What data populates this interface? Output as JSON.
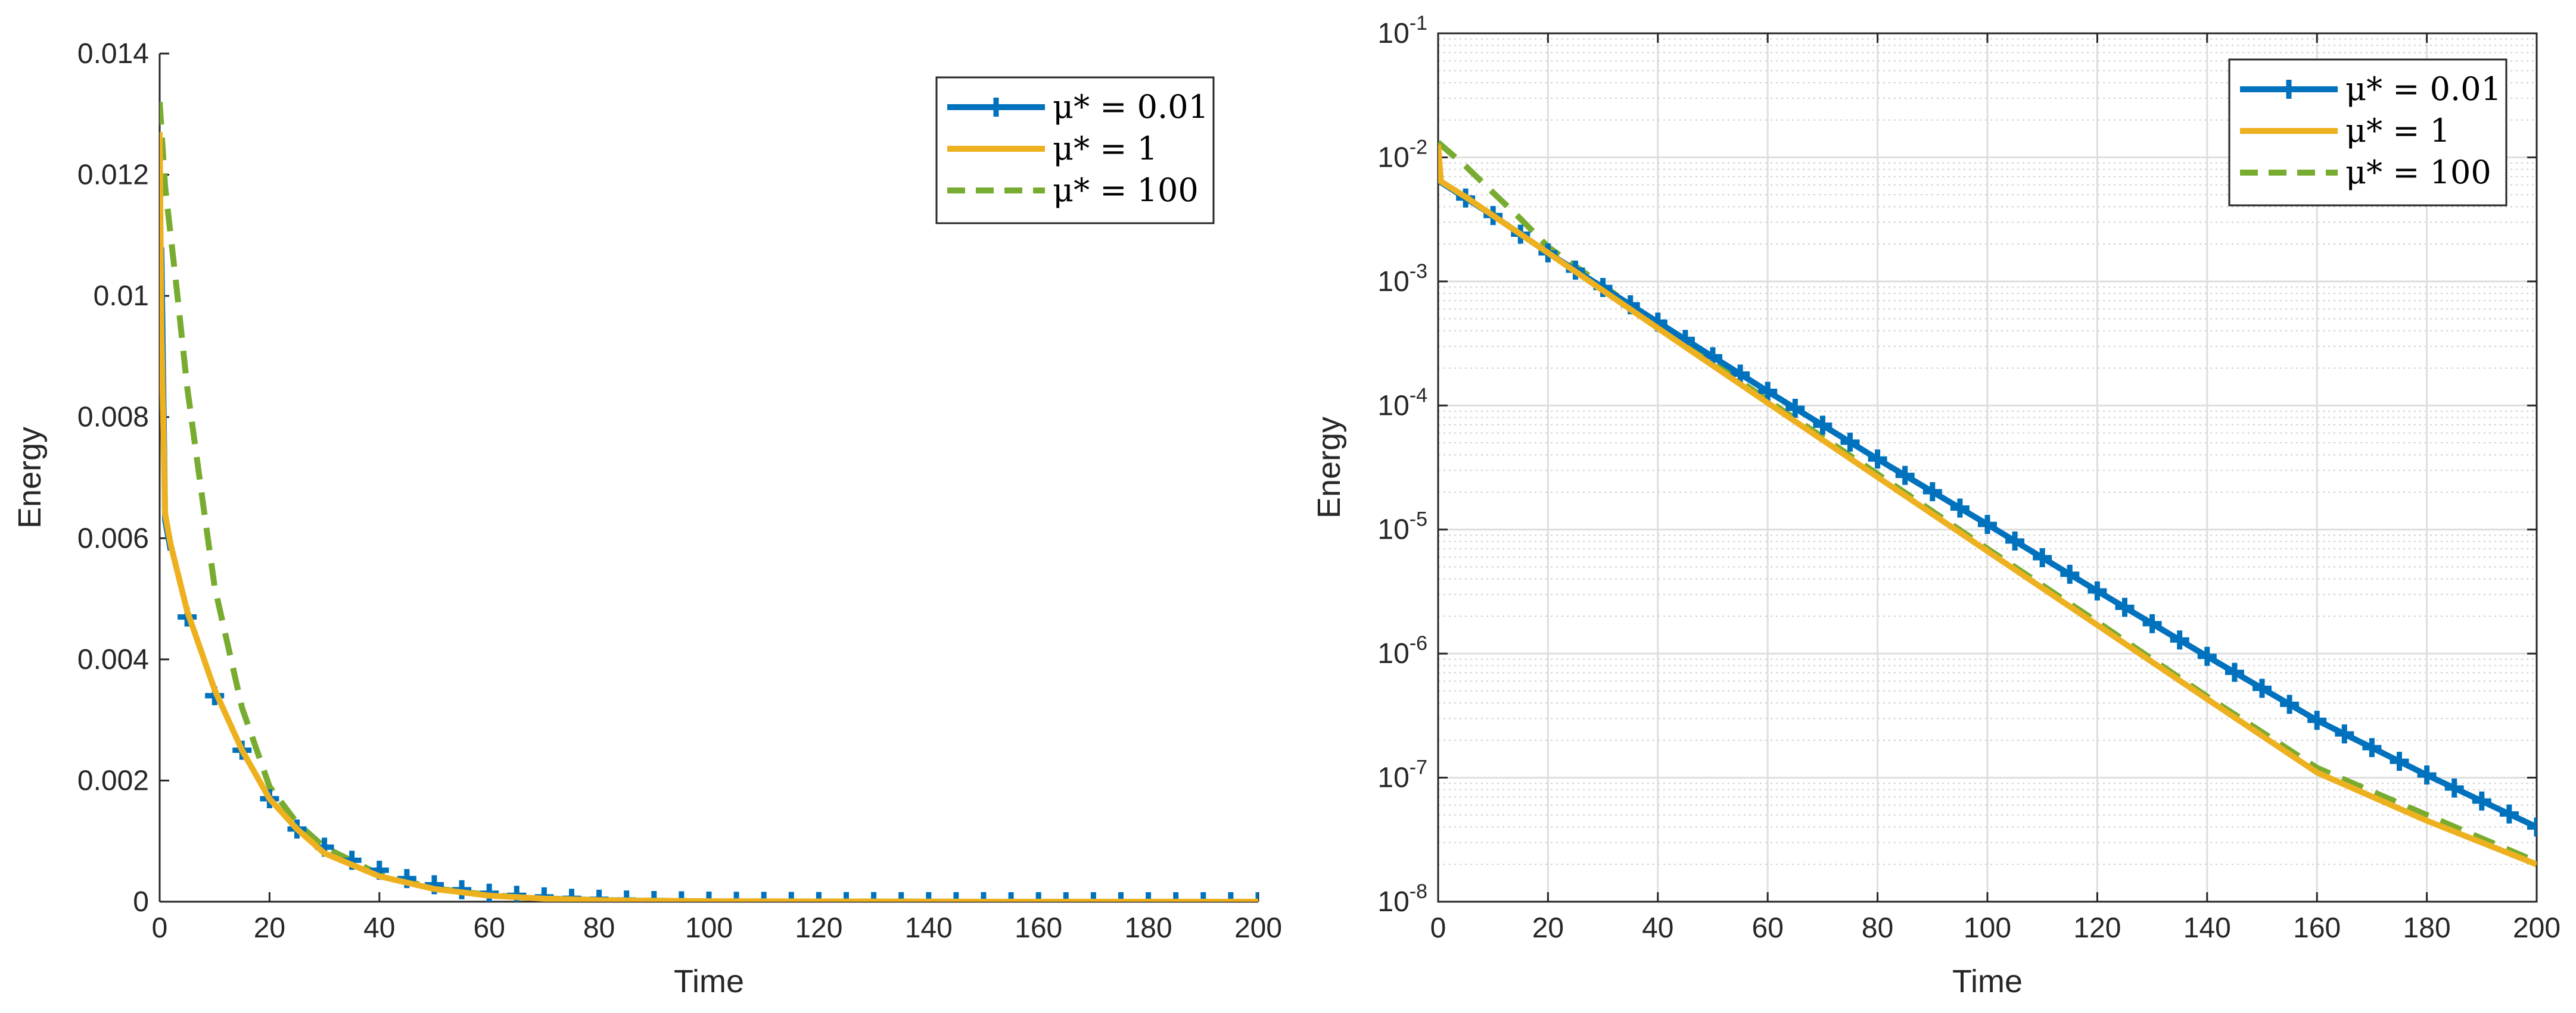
{
  "colors": {
    "mu_001": "#0072BD",
    "mu_1": "#EDB120",
    "mu_100": "#77AC30",
    "axis": "#262626",
    "grid": "#dedede"
  },
  "chart_data": [
    {
      "type": "line",
      "title": "",
      "xlabel": "Time",
      "ylabel": "Energy",
      "xlim": [
        0,
        200
      ],
      "ylim": [
        0,
        0.014
      ],
      "yscale": "linear",
      "grid": false,
      "legend_position": "top-right",
      "xticks": [
        "0",
        "20",
        "40",
        "60",
        "80",
        "100",
        "120",
        "140",
        "160",
        "180",
        "200"
      ],
      "yticks": [
        "0",
        "0.002",
        "0.004",
        "0.006",
        "0.008",
        "0.01",
        "0.012",
        "0.014"
      ],
      "series": [
        {
          "name": "μ* = 0.01",
          "style": "solid-plus",
          "x": [
            0,
            0.3,
            1,
            2,
            5,
            10,
            15,
            20,
            25,
            30,
            40,
            50,
            60,
            70,
            80,
            100,
            150,
            200
          ],
          "y": [
            0.0107,
            0.0108,
            0.0063,
            0.0058,
            0.0047,
            0.0034,
            0.0025,
            0.0017,
            0.0012,
            0.0009,
            0.00052,
            0.00028,
            0.00014,
            8e-05,
            4e-05,
            1e-05,
            7e-07,
            4e-08
          ]
        },
        {
          "name": "μ* = 1",
          "style": "solid",
          "x": [
            0,
            0.3,
            1,
            2,
            5,
            10,
            15,
            20,
            25,
            30,
            40,
            50,
            60,
            70,
            80,
            100,
            150,
            200
          ],
          "y": [
            0.0127,
            0.0095,
            0.0064,
            0.0059,
            0.0048,
            0.0035,
            0.0025,
            0.0017,
            0.0012,
            0.0008,
            0.00042,
            0.00021,
            0.0001,
            5e-05,
            2.5e-05,
            7e-06,
            3e-07,
            2e-08
          ]
        },
        {
          "name": "μ* = 100",
          "style": "dashed",
          "x": [
            0,
            0.5,
            1,
            3,
            5,
            8,
            10,
            15,
            20,
            25,
            30,
            40,
            50,
            60,
            70,
            80,
            100,
            150,
            200
          ],
          "y": [
            0.0132,
            0.0125,
            0.0118,
            0.0102,
            0.0085,
            0.0065,
            0.0052,
            0.0032,
            0.0019,
            0.0013,
            0.0009,
            0.00045,
            0.00022,
            0.00011,
            5.5e-05,
            2.8e-05,
            7e-06,
            3e-07,
            2e-08
          ]
        }
      ]
    },
    {
      "type": "line",
      "title": "",
      "xlabel": "Time",
      "ylabel": "Energy",
      "xlim": [
        0,
        200
      ],
      "ylim": [
        1e-08,
        0.1
      ],
      "yscale": "log",
      "grid": true,
      "minor_grid": true,
      "legend_position": "top-right",
      "xticks": [
        "0",
        "20",
        "40",
        "60",
        "80",
        "100",
        "120",
        "140",
        "160",
        "180",
        "200"
      ],
      "yticks": [
        {
          "base": "10",
          "exp": "-8"
        },
        {
          "base": "10",
          "exp": "-7"
        },
        {
          "base": "10",
          "exp": "-6"
        },
        {
          "base": "10",
          "exp": "-5"
        },
        {
          "base": "10",
          "exp": "-4"
        },
        {
          "base": "10",
          "exp": "-3"
        },
        {
          "base": "10",
          "exp": "-2"
        },
        {
          "base": "10",
          "exp": "-1"
        }
      ],
      "series": [
        {
          "name": "μ* = 0.01",
          "style": "solid-plus",
          "x": [
            0,
            0.5,
            5,
            10,
            20,
            40,
            60,
            80,
            100,
            120,
            140,
            160,
            180,
            200
          ],
          "y": [
            0.0107,
            0.0063,
            0.0047,
            0.0034,
            0.0017,
            0.00047,
            0.00013,
            3.7e-05,
            1.1e-05,
            3.2e-06,
            9.5e-07,
            2.9e-07,
            1.05e-07,
            4e-08
          ]
        },
        {
          "name": "μ* = 1",
          "style": "solid",
          "x": [
            0,
            0.5,
            5,
            10,
            20,
            40,
            60,
            80,
            100,
            120,
            140,
            160,
            180,
            200
          ],
          "y": [
            0.0127,
            0.0064,
            0.0048,
            0.0034,
            0.0017,
            0.00042,
            0.000105,
            2.65e-05,
            6.7e-06,
            1.7e-06,
            4.3e-07,
            1.1e-07,
            4.5e-08,
            2e-08
          ]
        },
        {
          "name": "μ* = 100",
          "style": "dashed",
          "x": [
            0,
            5,
            10,
            15,
            20,
            40,
            60,
            80,
            100,
            120,
            140,
            160,
            180,
            200
          ],
          "y": [
            0.0132,
            0.0085,
            0.0052,
            0.0032,
            0.0019,
            0.00045,
            0.00011,
            2.8e-05,
            7e-06,
            1.8e-06,
            4.5e-07,
            1.2e-07,
            5e-08,
            2.1e-08
          ]
        }
      ]
    }
  ]
}
